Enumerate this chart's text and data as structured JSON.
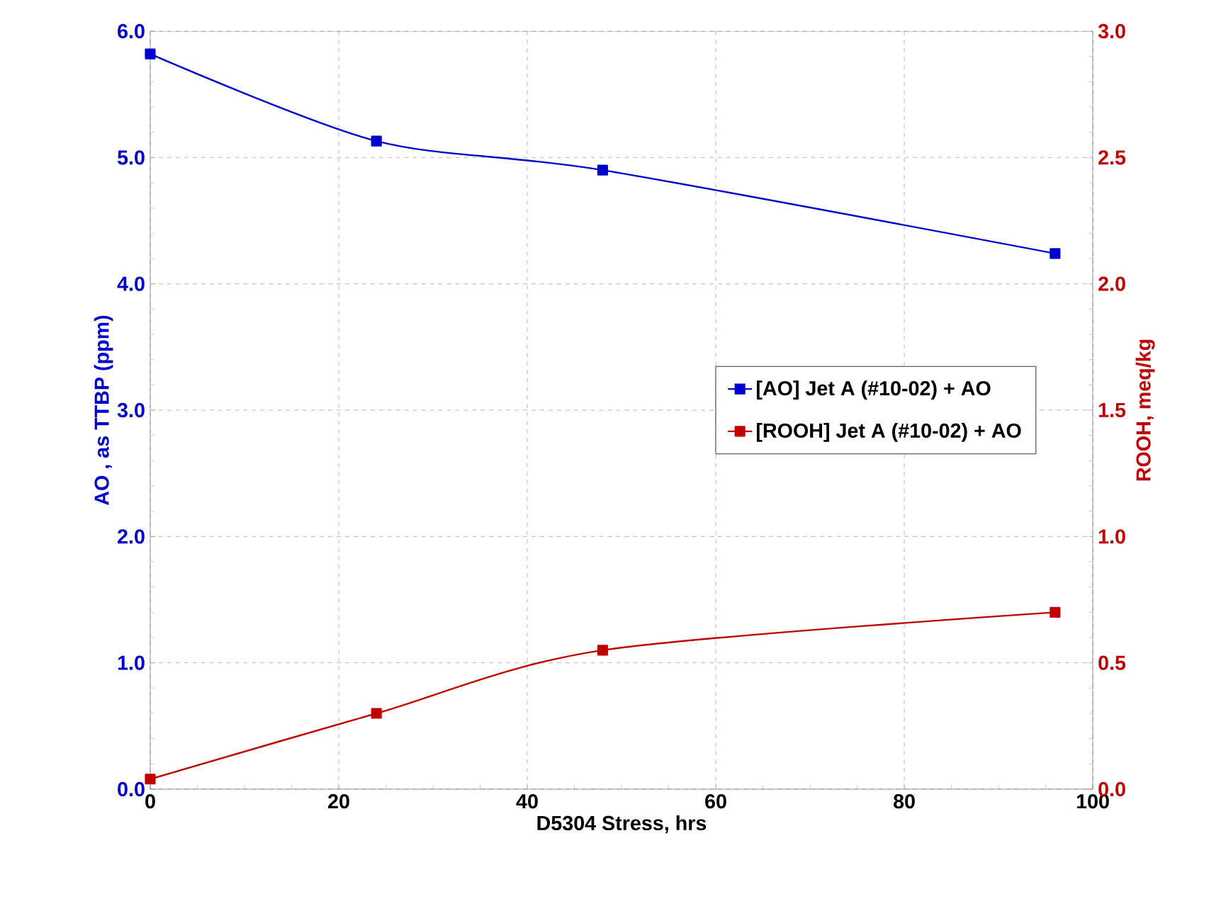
{
  "chart_data": {
    "type": "line",
    "xlabel": "D5304 Stress, hrs",
    "ylabel": "AO , as TTBP (ppm)",
    "y2label": "ROOH, meq/kg",
    "x": [
      0,
      24,
      48,
      96
    ],
    "series": [
      {
        "name": "[AO] Jet A (#10-02) + AO",
        "color": "#0000cc",
        "values": [
          5.82,
          5.13,
          4.9,
          4.24
        ]
      },
      {
        "name": "[ROOH] Jet A (#10-02) + AO",
        "color": "#c00000",
        "values": [
          0.04,
          0.3,
          0.55,
          0.7
        ],
        "axis": "y2"
      }
    ],
    "xlim": [
      0,
      100
    ],
    "xticks": [
      0,
      20,
      40,
      60,
      80,
      100
    ],
    "ylim": [
      0,
      6
    ],
    "yticks": [
      {
        "value": 0,
        "label": "0.0"
      },
      {
        "value": 1,
        "label": "1.0"
      },
      {
        "value": 2,
        "label": "2.0"
      },
      {
        "value": 3,
        "label": "3.0"
      },
      {
        "value": 4,
        "label": "4.0"
      },
      {
        "value": 5,
        "label": "5.0"
      },
      {
        "value": 6,
        "label": "6.0"
      }
    ],
    "y2lim": [
      0,
      3
    ],
    "y2ticks": [
      {
        "value": 0,
        "label": "0.0"
      },
      {
        "value": 0.5,
        "label": "0.5"
      },
      {
        "value": 1,
        "label": "1.0"
      },
      {
        "value": 1.5,
        "label": "1.5"
      },
      {
        "value": 2,
        "label": "2.0"
      },
      {
        "value": 2.5,
        "label": "2.5"
      },
      {
        "value": 3,
        "label": "3.0"
      }
    ],
    "grid": true,
    "legend": "right",
    "marker": "square",
    "line_style": "solid"
  }
}
